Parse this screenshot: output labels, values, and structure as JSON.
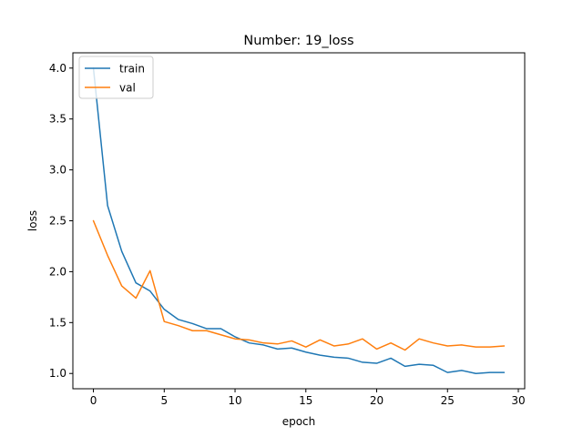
{
  "chart_data": {
    "type": "line",
    "title": "Number: 19_loss",
    "xlabel": "epoch",
    "ylabel": "loss",
    "xlim": [
      -1.45,
      30.45
    ],
    "ylim": [
      0.85,
      4.15
    ],
    "xticks": [
      0,
      5,
      10,
      15,
      20,
      25,
      30
    ],
    "yticks": [
      1.0,
      1.5,
      2.0,
      2.5,
      3.0,
      3.5,
      4.0
    ],
    "grid": false,
    "legend_position": "upper left",
    "x": [
      0,
      1,
      2,
      3,
      4,
      5,
      6,
      7,
      8,
      9,
      10,
      11,
      12,
      13,
      14,
      15,
      16,
      17,
      18,
      19,
      20,
      21,
      22,
      23,
      24,
      25,
      26,
      27,
      28,
      29
    ],
    "series": [
      {
        "name": "train",
        "color": "#1f77b4",
        "values": [
          4.0,
          2.65,
          2.2,
          1.89,
          1.81,
          1.63,
          1.53,
          1.49,
          1.44,
          1.44,
          1.36,
          1.3,
          1.28,
          1.24,
          1.25,
          1.21,
          1.18,
          1.16,
          1.15,
          1.11,
          1.1,
          1.15,
          1.07,
          1.09,
          1.08,
          1.01,
          1.03,
          1.0,
          1.01,
          1.01
        ]
      },
      {
        "name": "val",
        "color": "#ff7f0e",
        "values": [
          2.5,
          2.16,
          1.86,
          1.74,
          2.01,
          1.51,
          1.47,
          1.42,
          1.42,
          1.38,
          1.34,
          1.33,
          1.3,
          1.29,
          1.32,
          1.26,
          1.33,
          1.27,
          1.29,
          1.34,
          1.24,
          1.3,
          1.23,
          1.34,
          1.3,
          1.27,
          1.28,
          1.26,
          1.26,
          1.27
        ]
      }
    ]
  }
}
